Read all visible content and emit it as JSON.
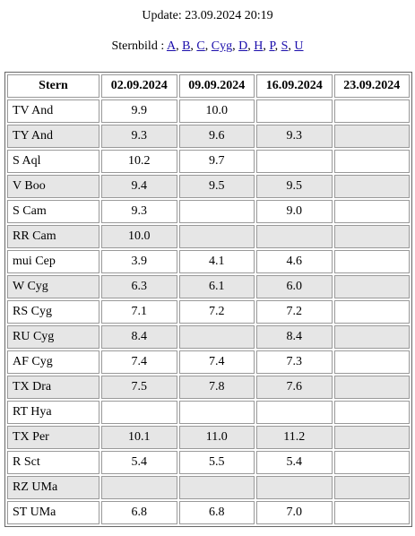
{
  "update": "Update: 23.09.2024 20:19",
  "sternbild": {
    "label": "Sternbild :",
    "separator": ",",
    "links": [
      "A",
      "B",
      "C",
      "Cyg",
      "D",
      "H",
      "P",
      "S",
      "U"
    ]
  },
  "table": {
    "header": [
      "Stern",
      "02.09.2024",
      "09.09.2024",
      "16.09.2024",
      "23.09.2024"
    ],
    "rows": [
      [
        "TV And",
        "9.9",
        "10.0",
        null,
        null
      ],
      [
        "TY And",
        "9.3",
        "9.6",
        "9.3",
        null
      ],
      [
        "S Aql",
        "10.2",
        "9.7",
        null,
        null
      ],
      [
        "V Boo",
        "9.4",
        "9.5",
        "9.5",
        null
      ],
      [
        "S Cam",
        "9.3",
        null,
        "9.0",
        null
      ],
      [
        "RR Cam",
        "10.0",
        null,
        null,
        null
      ],
      [
        "mui Cep",
        "3.9",
        "4.1",
        "4.6",
        null
      ],
      [
        "W Cyg",
        "6.3",
        "6.1",
        "6.0",
        null
      ],
      [
        "RS Cyg",
        "7.1",
        "7.2",
        "7.2",
        null
      ],
      [
        "RU Cyg",
        "8.4",
        null,
        "8.4",
        null
      ],
      [
        "AF Cyg",
        "7.4",
        "7.4",
        "7.3",
        null
      ],
      [
        "TX Dra",
        "7.5",
        "7.8",
        "7.6",
        null
      ],
      [
        "RT Hya",
        null,
        null,
        null,
        null
      ],
      [
        "TX Per",
        "10.1",
        "11.0",
        "11.2",
        null
      ],
      [
        "R Sct",
        "5.4",
        "5.5",
        "5.4",
        null
      ],
      [
        "RZ UMa",
        null,
        null,
        null,
        null
      ],
      [
        "ST UMa",
        "6.8",
        "6.8",
        "7.0",
        null
      ]
    ]
  }
}
